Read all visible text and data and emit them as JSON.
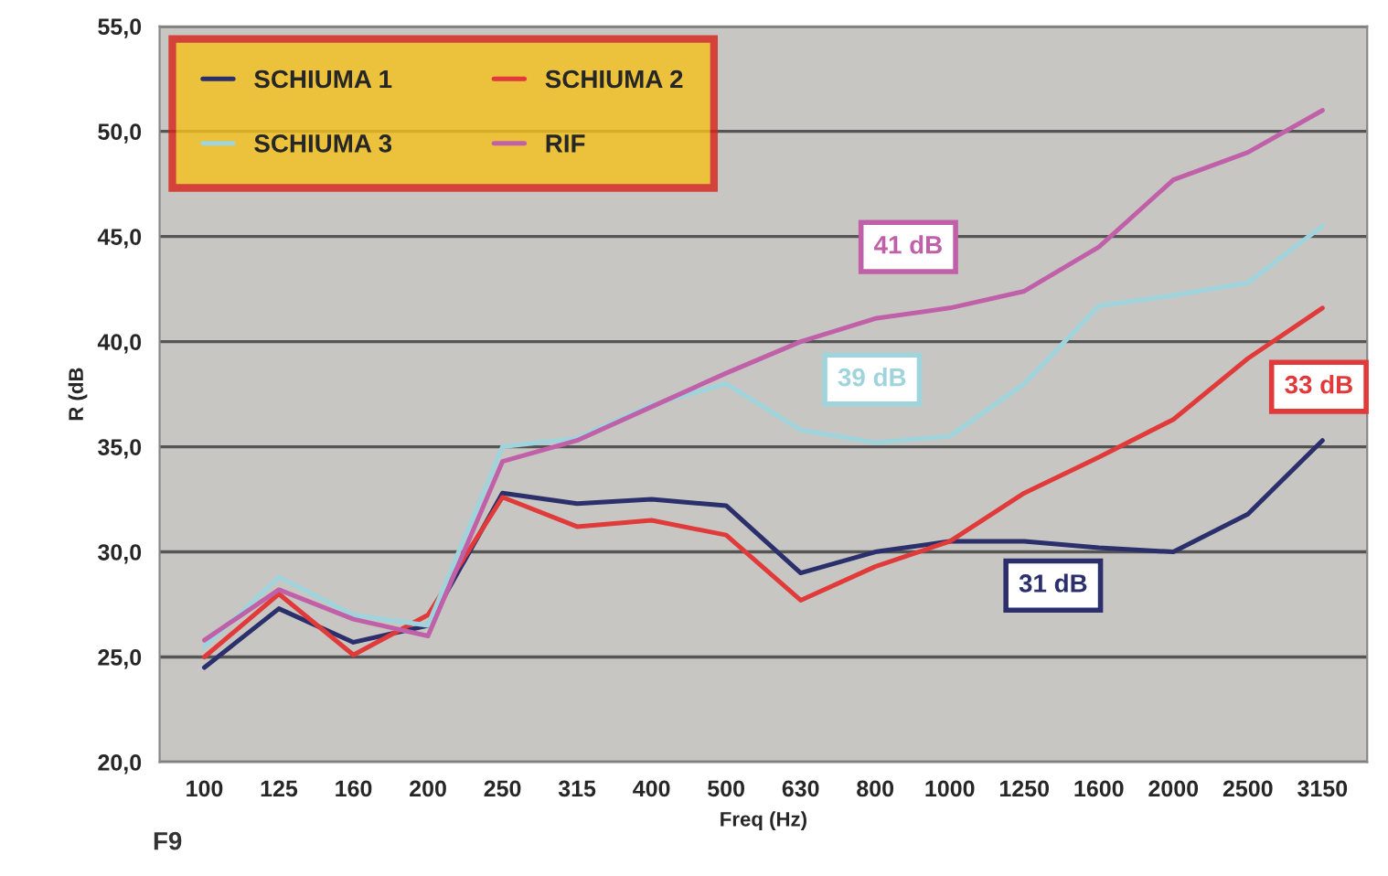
{
  "chart_data": {
    "type": "line",
    "xlabel": "Freq (Hz)",
    "ylabel": "R (dB",
    "categories": [
      "100",
      "125",
      "160",
      "200",
      "250",
      "315",
      "400",
      "500",
      "630",
      "800",
      "1000",
      "1250",
      "1600",
      "2000",
      "2500",
      "3150"
    ],
    "series": [
      {
        "name": "SCHIUMA 1",
        "color": "#2b2f6b",
        "values": [
          24.5,
          27.3,
          25.7,
          26.5,
          32.8,
          32.3,
          32.5,
          32.2,
          29.0,
          30.0,
          30.5,
          30.5,
          30.2,
          30.0,
          31.8,
          35.3
        ]
      },
      {
        "name": "SCHIUMA 2",
        "color": "#e03a3a",
        "values": [
          25.0,
          28.0,
          25.1,
          27.0,
          32.6,
          31.2,
          31.5,
          30.8,
          27.7,
          29.3,
          30.5,
          32.8,
          34.5,
          36.3,
          39.2,
          41.6
        ]
      },
      {
        "name": "SCHIUMA 3",
        "color": "#9fd4dc",
        "values": [
          25.5,
          28.8,
          27.0,
          26.5,
          35.0,
          35.4,
          37.0,
          38.0,
          35.8,
          35.2,
          35.5,
          38.0,
          41.7,
          42.2,
          42.8,
          45.5
        ]
      },
      {
        "name": "RIF",
        "color": "#c060a8",
        "values": [
          25.8,
          28.2,
          26.8,
          26.0,
          34.3,
          35.3,
          36.9,
          38.5,
          40.0,
          41.1,
          41.6,
          42.4,
          44.5,
          47.7,
          49.0,
          51.0
        ]
      }
    ],
    "ylim": [
      20,
      55
    ],
    "yticks": [
      {
        "value": 20,
        "label": "20,0"
      },
      {
        "value": 25,
        "label": "25,0"
      },
      {
        "value": 30,
        "label": "30,0"
      },
      {
        "value": 35,
        "label": "35,0"
      },
      {
        "value": 40,
        "label": "40,0"
      },
      {
        "value": 45,
        "label": "45,0"
      },
      {
        "value": 50,
        "label": "50,0"
      },
      {
        "value": 55,
        "label": "55,0"
      }
    ],
    "annotations": [
      "41 dB",
      "39 dB",
      "33 dB",
      "31 dB",
      "F9"
    ],
    "grid": "y",
    "legend": "top left",
    "marker": "none",
    "line_style": "solid"
  }
}
